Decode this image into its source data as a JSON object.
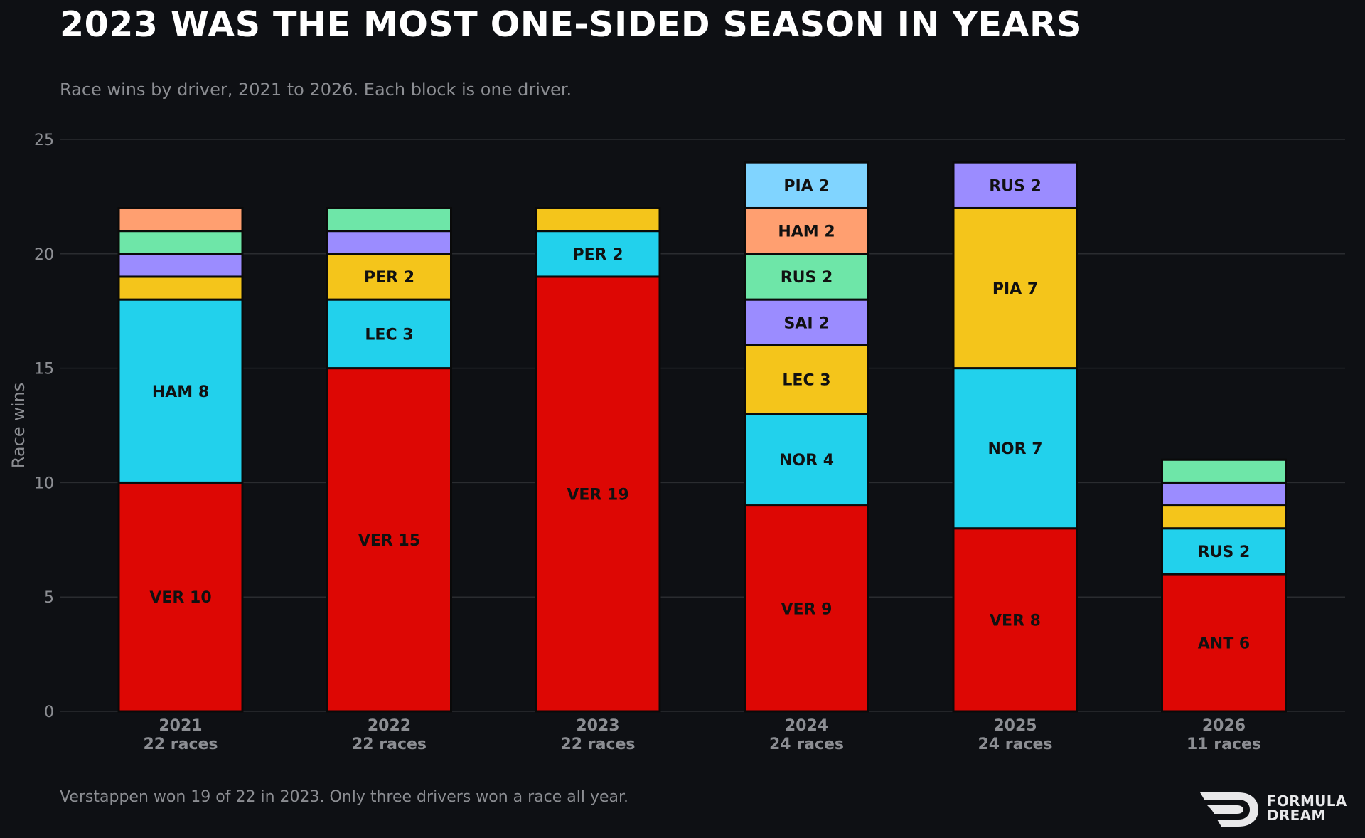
{
  "title": "2023 WAS THE MOST ONE-SIDED SEASON IN YEARS",
  "subtitle": "Race wins by driver, 2021 to 2026. Each block is one driver.",
  "footnote": "Verstappen won 19 of 22 in 2023. Only three drivers won a race all year.",
  "brand": {
    "line1": "FORMULA",
    "line2": "DREAM",
    "icon": "formula-dream-logo-icon"
  },
  "colors": {
    "background": "#0e1014",
    "grid": "#2a2c30",
    "axis_text": "#8c8e93",
    "block_border": "#0a0a0a",
    "segment_label": "#111111",
    "palette": [
      "#dd0704",
      "#22d1ec",
      "#f4c51b",
      "#9b8cff",
      "#6ee6a8",
      "#ff9f70",
      "#80d4ff"
    ]
  },
  "chart_data": {
    "type": "bar",
    "stacked": true,
    "ylabel": "Race wins",
    "ylim": [
      0,
      25
    ],
    "yticks": [
      0,
      5,
      10,
      15,
      20,
      25
    ],
    "grid": true,
    "categories": [
      {
        "year": "2021",
        "races": "22 races",
        "segments": [
          {
            "driver": "VER",
            "wins": 10,
            "label": "VER 10",
            "color": "#dd0704"
          },
          {
            "driver": "HAM",
            "wins": 8,
            "label": "HAM 8",
            "color": "#22d1ec"
          },
          {
            "driver": "",
            "wins": 1,
            "label": "",
            "color": "#f4c51b"
          },
          {
            "driver": "",
            "wins": 1,
            "label": "",
            "color": "#9b8cff"
          },
          {
            "driver": "",
            "wins": 1,
            "label": "",
            "color": "#6ee6a8"
          },
          {
            "driver": "",
            "wins": 1,
            "label": "",
            "color": "#ff9f70"
          }
        ]
      },
      {
        "year": "2022",
        "races": "22 races",
        "segments": [
          {
            "driver": "VER",
            "wins": 15,
            "label": "VER 15",
            "color": "#dd0704"
          },
          {
            "driver": "LEC",
            "wins": 3,
            "label": "LEC 3",
            "color": "#22d1ec"
          },
          {
            "driver": "PER",
            "wins": 2,
            "label": "PER 2",
            "color": "#f4c51b"
          },
          {
            "driver": "",
            "wins": 1,
            "label": "",
            "color": "#9b8cff"
          },
          {
            "driver": "",
            "wins": 1,
            "label": "",
            "color": "#6ee6a8"
          }
        ]
      },
      {
        "year": "2023",
        "races": "22 races",
        "segments": [
          {
            "driver": "VER",
            "wins": 19,
            "label": "VER 19",
            "color": "#dd0704"
          },
          {
            "driver": "PER",
            "wins": 2,
            "label": "PER 2",
            "color": "#22d1ec"
          },
          {
            "driver": "",
            "wins": 1,
            "label": "",
            "color": "#f4c51b"
          }
        ]
      },
      {
        "year": "2024",
        "races": "24 races",
        "segments": [
          {
            "driver": "VER",
            "wins": 9,
            "label": "VER 9",
            "color": "#dd0704"
          },
          {
            "driver": "NOR",
            "wins": 4,
            "label": "NOR 4",
            "color": "#22d1ec"
          },
          {
            "driver": "LEC",
            "wins": 3,
            "label": "LEC 3",
            "color": "#f4c51b"
          },
          {
            "driver": "SAI",
            "wins": 2,
            "label": "SAI 2",
            "color": "#9b8cff"
          },
          {
            "driver": "RUS",
            "wins": 2,
            "label": "RUS 2",
            "color": "#6ee6a8"
          },
          {
            "driver": "HAM",
            "wins": 2,
            "label": "HAM 2",
            "color": "#ff9f70"
          },
          {
            "driver": "PIA",
            "wins": 2,
            "label": "PIA 2",
            "color": "#80d4ff"
          }
        ]
      },
      {
        "year": "2025",
        "races": "24 races",
        "segments": [
          {
            "driver": "VER",
            "wins": 8,
            "label": "VER 8",
            "color": "#dd0704"
          },
          {
            "driver": "NOR",
            "wins": 7,
            "label": "NOR 7",
            "color": "#22d1ec"
          },
          {
            "driver": "PIA",
            "wins": 7,
            "label": "PIA 7",
            "color": "#f4c51b"
          },
          {
            "driver": "RUS",
            "wins": 2,
            "label": "RUS 2",
            "color": "#9b8cff"
          }
        ]
      },
      {
        "year": "2026",
        "races": "11 races",
        "segments": [
          {
            "driver": "ANT",
            "wins": 6,
            "label": "ANT 6",
            "color": "#dd0704"
          },
          {
            "driver": "RUS",
            "wins": 2,
            "label": "RUS 2",
            "color": "#22d1ec"
          },
          {
            "driver": "",
            "wins": 1,
            "label": "",
            "color": "#f4c51b"
          },
          {
            "driver": "",
            "wins": 1,
            "label": "",
            "color": "#9b8cff"
          },
          {
            "driver": "",
            "wins": 1,
            "label": "",
            "color": "#6ee6a8"
          }
        ]
      }
    ]
  }
}
